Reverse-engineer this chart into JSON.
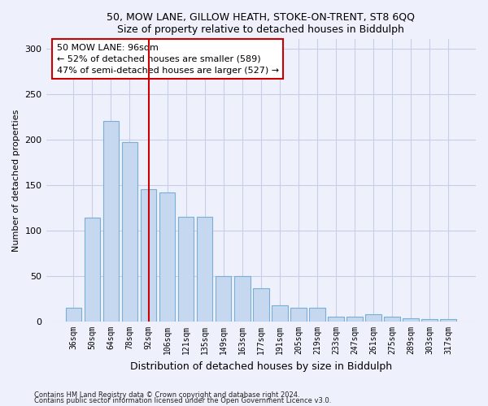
{
  "title1": "50, MOW LANE, GILLOW HEATH, STOKE-ON-TRENT, ST8 6QQ",
  "title2": "Size of property relative to detached houses in Biddulph",
  "xlabel": "Distribution of detached houses by size in Biddulph",
  "ylabel": "Number of detached properties",
  "categories": [
    "36sqm",
    "50sqm",
    "64sqm",
    "78sqm",
    "92sqm",
    "106sqm",
    "121sqm",
    "135sqm",
    "149sqm",
    "163sqm",
    "177sqm",
    "191sqm",
    "205sqm",
    "219sqm",
    "233sqm",
    "247sqm",
    "261sqm",
    "275sqm",
    "289sqm",
    "303sqm",
    "317sqm"
  ],
  "values": [
    15,
    114,
    220,
    197,
    145,
    142,
    115,
    115,
    50,
    50,
    37,
    18,
    15,
    15,
    5,
    5,
    8,
    5,
    4,
    3,
    3
  ],
  "bar_color": "#c5d8f0",
  "bar_edge_color": "#7aaed6",
  "annotation_line1": "50 MOW LANE: 96sqm",
  "annotation_line2": "← 52% of detached houses are smaller (589)",
  "annotation_line3": "47% of semi-detached houses are larger (527) →",
  "annotation_box_color": "white",
  "annotation_box_edge_color": "#cc0000",
  "vline_color": "#cc0000",
  "vline_x": 4.0,
  "ylim": [
    0,
    310
  ],
  "yticks": [
    0,
    50,
    100,
    150,
    200,
    250,
    300
  ],
  "footer1": "Contains HM Land Registry data © Crown copyright and database right 2024.",
  "footer2": "Contains public sector information licensed under the Open Government Licence v3.0.",
  "bg_color": "#eef1fb",
  "plot_bg_color": "#eef1fb",
  "grid_color": "#c8cee8",
  "title_fontsize": 9,
  "tick_fontsize": 7,
  "ylabel_fontsize": 8,
  "xlabel_fontsize": 9
}
